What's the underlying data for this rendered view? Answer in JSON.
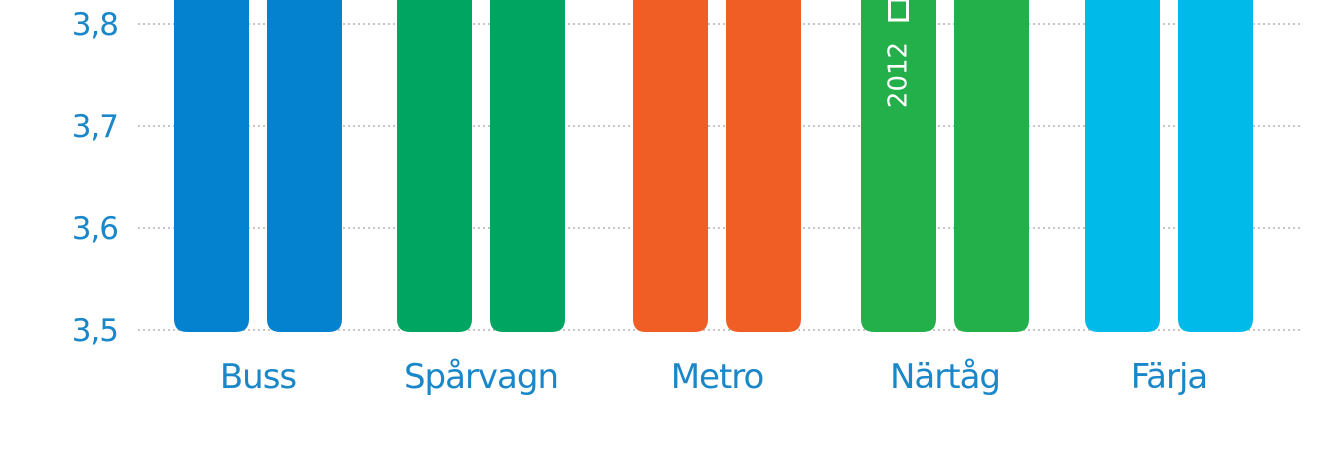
{
  "chart_data": {
    "type": "bar",
    "categories": [
      "Buss",
      "Spårvagn",
      "Metro",
      "Närtåg",
      "Färja"
    ],
    "series": [
      {
        "values": [
          3.95,
          3.95,
          3.95,
          3.95,
          3.95
        ]
      },
      {
        "values": [
          3.95,
          3.95,
          3.95,
          3.95,
          3.95
        ]
      }
    ],
    "bar_colors": [
      "#0582cf",
      "#00a562",
      "#f05e26",
      "#23b04b",
      "#00bbea"
    ],
    "y_ticks": [
      "3,5",
      "3,6",
      "3,7",
      "3,8"
    ],
    "y_tick_values": [
      3.5,
      3.6,
      3.7,
      3.8
    ],
    "ylim": [
      3.5,
      3.8
    ],
    "grid": true,
    "grid_style": "dotted",
    "annotations": [
      {
        "category": "Närtåg",
        "series": 0,
        "text": "2012",
        "color": "#ffffff"
      }
    ],
    "tick_color": "#1a87c9",
    "label_color": "#1a87c9",
    "grid_color": "#b3b3b3"
  }
}
